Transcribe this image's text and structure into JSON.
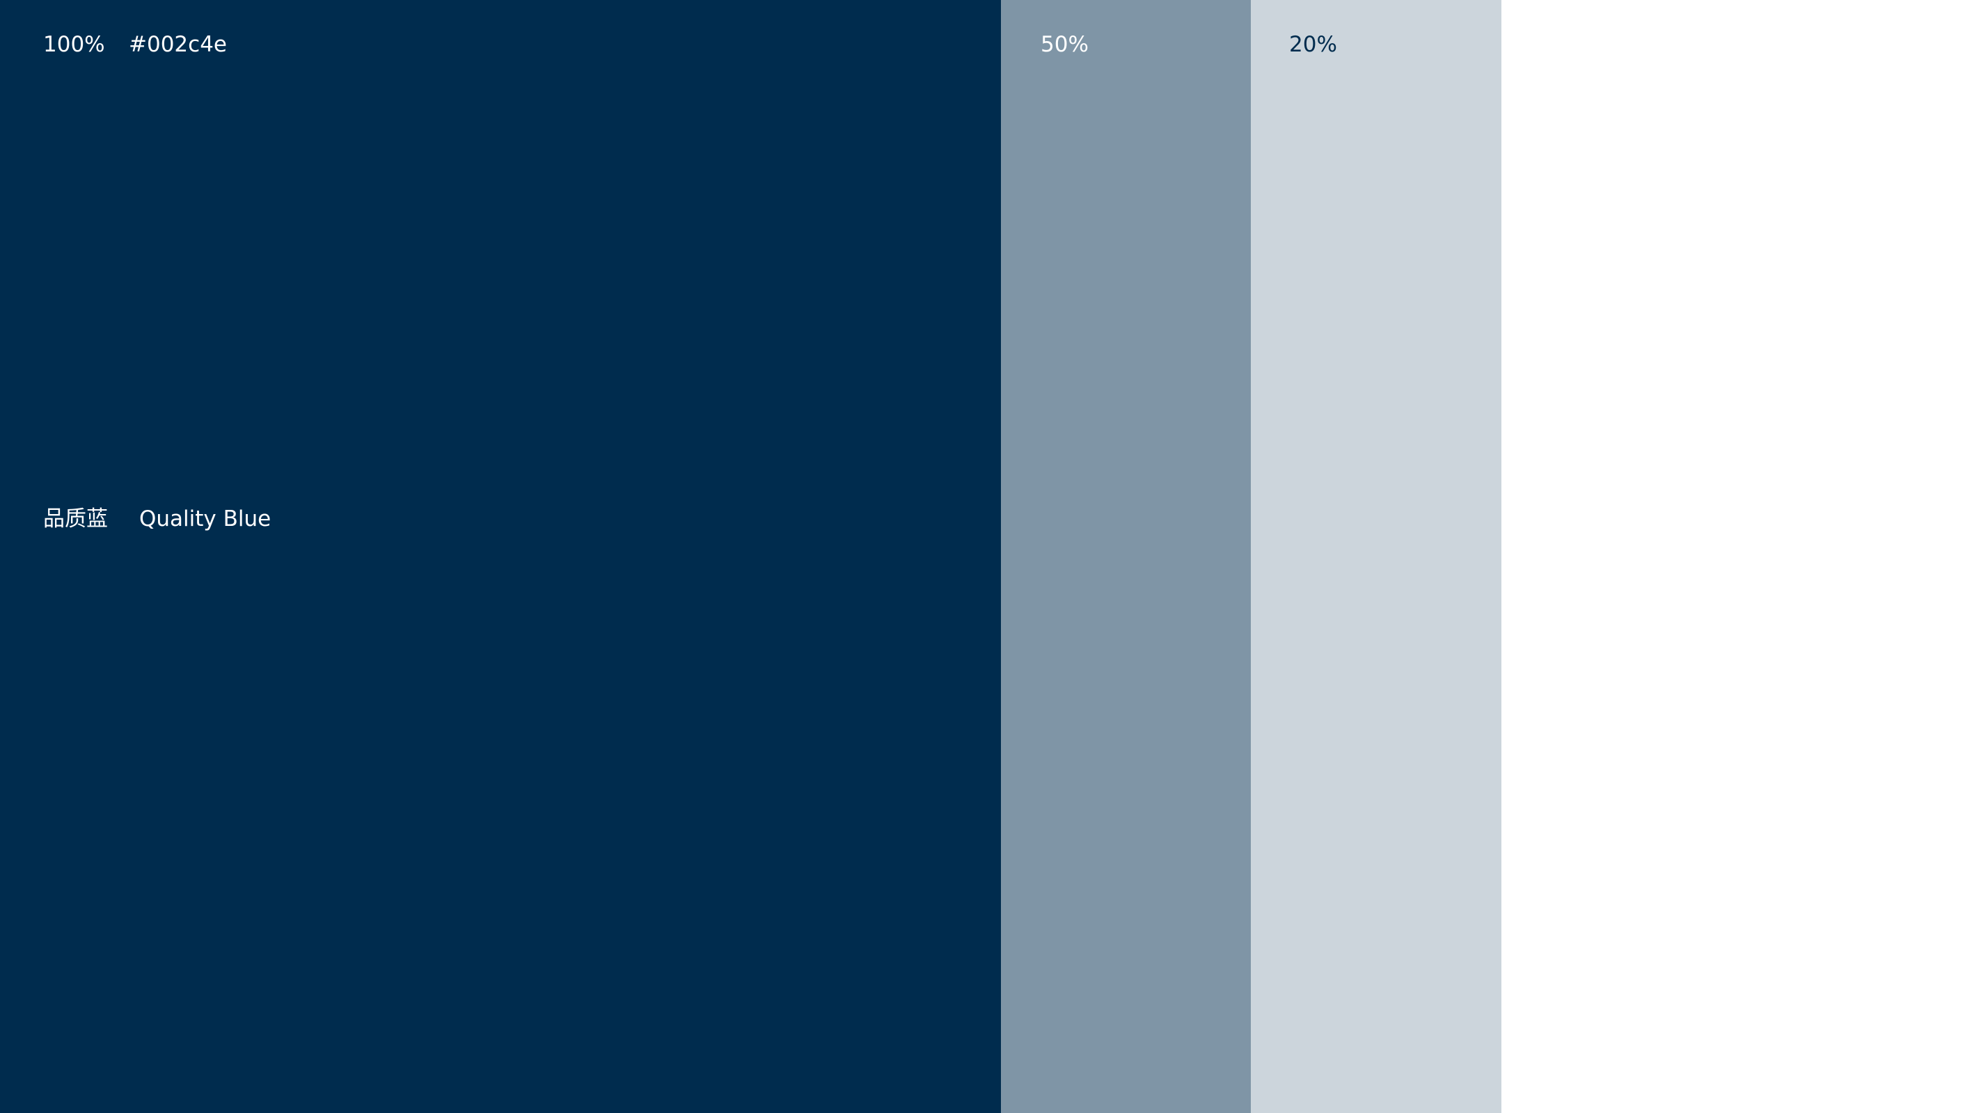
{
  "swatches": [
    {
      "percent": "100%",
      "hex": "#002c4e",
      "name_cn": "品质蓝",
      "name_en": "Quality Blue"
    },
    {
      "percent": "50%"
    },
    {
      "percent": "20%"
    }
  ]
}
